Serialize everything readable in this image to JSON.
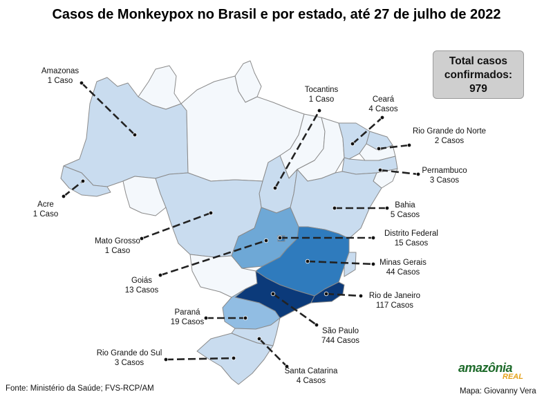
{
  "title": "Casos de Monkeypox no Brasil e por estado, até 27 de julho de 2022",
  "total_box": {
    "line1": "Total casos",
    "line2": "confirmados:",
    "value": "979"
  },
  "legend_colors": {
    "none": "#f4f8fc",
    "c1": "#d6e4f3",
    "c2": "#c0d6ec",
    "c3": "#6ea8d6",
    "c4": "#2f7bbd",
    "c5": "#0b3a7a"
  },
  "states": [
    {
      "key": "amazonas",
      "name": "Amazonas",
      "cases": "1 Caso",
      "value": 1
    },
    {
      "key": "acre",
      "name": "Acre",
      "cases": "1 Caso",
      "value": 1
    },
    {
      "key": "mato_grosso",
      "name": "Mato Grosso",
      "cases": "1 Caso",
      "value": 1
    },
    {
      "key": "goias",
      "name": "Goiás",
      "cases": "13 Casos",
      "value": 13
    },
    {
      "key": "parana",
      "name": "Paraná",
      "cases": "19 Casos",
      "value": 19
    },
    {
      "key": "rio_grande_do_sul",
      "name": "Rio Grande do Sul",
      "cases": "3 Casos",
      "value": 3
    },
    {
      "key": "santa_catarina",
      "name": "Santa Catarina",
      "cases": "4 Casos",
      "value": 4
    },
    {
      "key": "sao_paulo",
      "name": "São Paulo",
      "cases": "744 Casos",
      "value": 744
    },
    {
      "key": "rio_de_janeiro",
      "name": "Rio de Janeiro",
      "cases": "117 Casos",
      "value": 117
    },
    {
      "key": "minas_gerais",
      "name": "Minas Gerais",
      "cases": "44 Casos",
      "value": 44
    },
    {
      "key": "distrito_federal",
      "name": "Distrito Federal",
      "cases": "15 Casos",
      "value": 15
    },
    {
      "key": "bahia",
      "name": "Bahia",
      "cases": "5 Casos",
      "value": 5
    },
    {
      "key": "pernambuco",
      "name": "Pernambuco",
      "cases": "3 Casos",
      "value": 3
    },
    {
      "key": "rio_grande_do_norte",
      "name": "Rio Grande do Norte",
      "cases": "2 Casos",
      "value": 2
    },
    {
      "key": "ceara",
      "name": "Ceará",
      "cases": "4 Casos",
      "value": 4
    },
    {
      "key": "tocantins",
      "name": "Tocantins",
      "cases": "1 Caso",
      "value": 1
    }
  ],
  "source": "Fonte: Ministério da Saúde; FVS-RCP/AM",
  "credit": "Mapa: Giovanny Vera",
  "logo": {
    "main": "amazônia",
    "sub": "REAL"
  }
}
